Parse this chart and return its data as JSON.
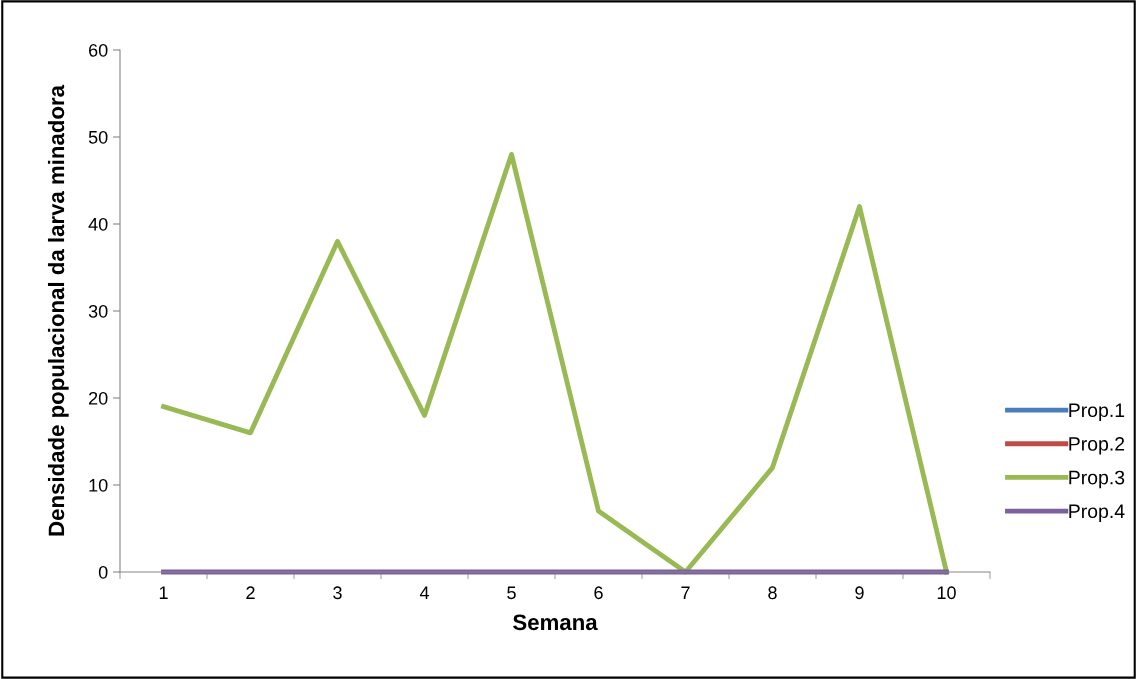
{
  "chart_data": {
    "type": "line",
    "xlabel": "Semana",
    "ylabel": "Densidade populacional da larva minadora",
    "categories": [
      "1",
      "2",
      "3",
      "4",
      "5",
      "6",
      "7",
      "8",
      "9",
      "10"
    ],
    "series": [
      {
        "name": "Prop.1",
        "color": "#4a7ebb",
        "values": [
          null,
          null,
          null,
          null,
          null,
          null,
          null,
          null,
          null,
          null
        ]
      },
      {
        "name": "Prop.2",
        "color": "#be4b48",
        "values": [
          null,
          null,
          null,
          null,
          null,
          null,
          null,
          null,
          null,
          null
        ]
      },
      {
        "name": "Prop.3",
        "color": "#98b954",
        "values": [
          19,
          16,
          38,
          18,
          48,
          7,
          0,
          12,
          42,
          0
        ]
      },
      {
        "name": "Prop.4",
        "color": "#7d60a0",
        "values": [
          0,
          0,
          0,
          0,
          0,
          0,
          0,
          0,
          0,
          0
        ]
      }
    ],
    "ylim": [
      0,
      60
    ],
    "yticks": [
      0,
      10,
      20,
      30,
      40,
      50,
      60
    ],
    "grid": false,
    "legend": "right",
    "marker": "none",
    "line_style": "solid"
  }
}
